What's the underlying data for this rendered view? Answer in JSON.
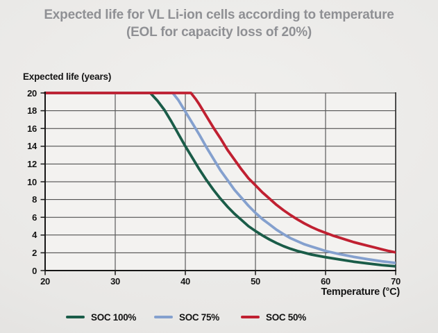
{
  "chart_data": {
    "type": "line",
    "title": "Expected life for VL Li-ion cells according to temperature",
    "subtitle": "(EOL for capacity loss of 20%)",
    "ylabel": "Expected life (years)",
    "xlabel": "Temperature (°C)",
    "xlim": [
      20,
      70
    ],
    "ylim": [
      0,
      20
    ],
    "xticks": [
      20,
      30,
      40,
      50,
      60,
      70
    ],
    "yticks": [
      0,
      2,
      4,
      6,
      8,
      10,
      12,
      14,
      16,
      18,
      20
    ],
    "grid": true,
    "legend_position": "bottom",
    "title_color": "#8f9094",
    "series": [
      {
        "name": "SOC 100%",
        "color": "#1A5C48",
        "points": [
          [
            20,
            20
          ],
          [
            35,
            20
          ],
          [
            36,
            19.15
          ],
          [
            37,
            18.1
          ],
          [
            38,
            16.8
          ],
          [
            39,
            15.4
          ],
          [
            40,
            14
          ],
          [
            41,
            12.7
          ],
          [
            42,
            11.4
          ],
          [
            43,
            10.2
          ],
          [
            44,
            9.1
          ],
          [
            45,
            8.1
          ],
          [
            46,
            7.2
          ],
          [
            47,
            6.4
          ],
          [
            48,
            5.7
          ],
          [
            49,
            5.0
          ],
          [
            50,
            4.45
          ],
          [
            51,
            3.95
          ],
          [
            52,
            3.5
          ],
          [
            53,
            3.1
          ],
          [
            54,
            2.75
          ],
          [
            55,
            2.45
          ],
          [
            56,
            2.2
          ],
          [
            57,
            2.0
          ],
          [
            58,
            1.8
          ],
          [
            59,
            1.65
          ],
          [
            60,
            1.5
          ],
          [
            62,
            1.25
          ],
          [
            64,
            1.0
          ],
          [
            66,
            0.8
          ],
          [
            68,
            0.62
          ],
          [
            70,
            0.48
          ]
        ]
      },
      {
        "name": "SOC 75%",
        "color": "#84A0CE",
        "points": [
          [
            20,
            20
          ],
          [
            38.2,
            20
          ],
          [
            39,
            19.2
          ],
          [
            40,
            17.9
          ],
          [
            41,
            16.6
          ],
          [
            42,
            15.3
          ],
          [
            43,
            13.9
          ],
          [
            44,
            12.6
          ],
          [
            45,
            11.3
          ],
          [
            46,
            10.2
          ],
          [
            47,
            9.1
          ],
          [
            48,
            8.2
          ],
          [
            49,
            7.3
          ],
          [
            50,
            6.5
          ],
          [
            51,
            5.8
          ],
          [
            52,
            5.2
          ],
          [
            53,
            4.6
          ],
          [
            54,
            4.1
          ],
          [
            55,
            3.65
          ],
          [
            56,
            3.3
          ],
          [
            57,
            2.95
          ],
          [
            58,
            2.7
          ],
          [
            59,
            2.45
          ],
          [
            60,
            2.2
          ],
          [
            62,
            1.85
          ],
          [
            64,
            1.55
          ],
          [
            66,
            1.28
          ],
          [
            68,
            1.05
          ],
          [
            70,
            0.85
          ]
        ]
      },
      {
        "name": "SOC 50%",
        "color": "#C02031",
        "points": [
          [
            20,
            20
          ],
          [
            40.8,
            20
          ],
          [
            41.5,
            19.3
          ],
          [
            42,
            18.7
          ],
          [
            43,
            17.4
          ],
          [
            44,
            16.1
          ],
          [
            45,
            14.9
          ],
          [
            46,
            13.6
          ],
          [
            47,
            12.5
          ],
          [
            48,
            11.4
          ],
          [
            49,
            10.4
          ],
          [
            50,
            9.6
          ],
          [
            51,
            8.8
          ],
          [
            52,
            8.1
          ],
          [
            53,
            7.4
          ],
          [
            54,
            6.8
          ],
          [
            55,
            6.25
          ],
          [
            56,
            5.75
          ],
          [
            57,
            5.3
          ],
          [
            58,
            4.9
          ],
          [
            59,
            4.55
          ],
          [
            60,
            4.25
          ],
          [
            61,
            3.95
          ],
          [
            62,
            3.7
          ],
          [
            63,
            3.45
          ],
          [
            64,
            3.2
          ],
          [
            65,
            3.0
          ],
          [
            66,
            2.8
          ],
          [
            67,
            2.6
          ],
          [
            68,
            2.4
          ],
          [
            69,
            2.2
          ],
          [
            70,
            2.05
          ]
        ]
      }
    ]
  }
}
